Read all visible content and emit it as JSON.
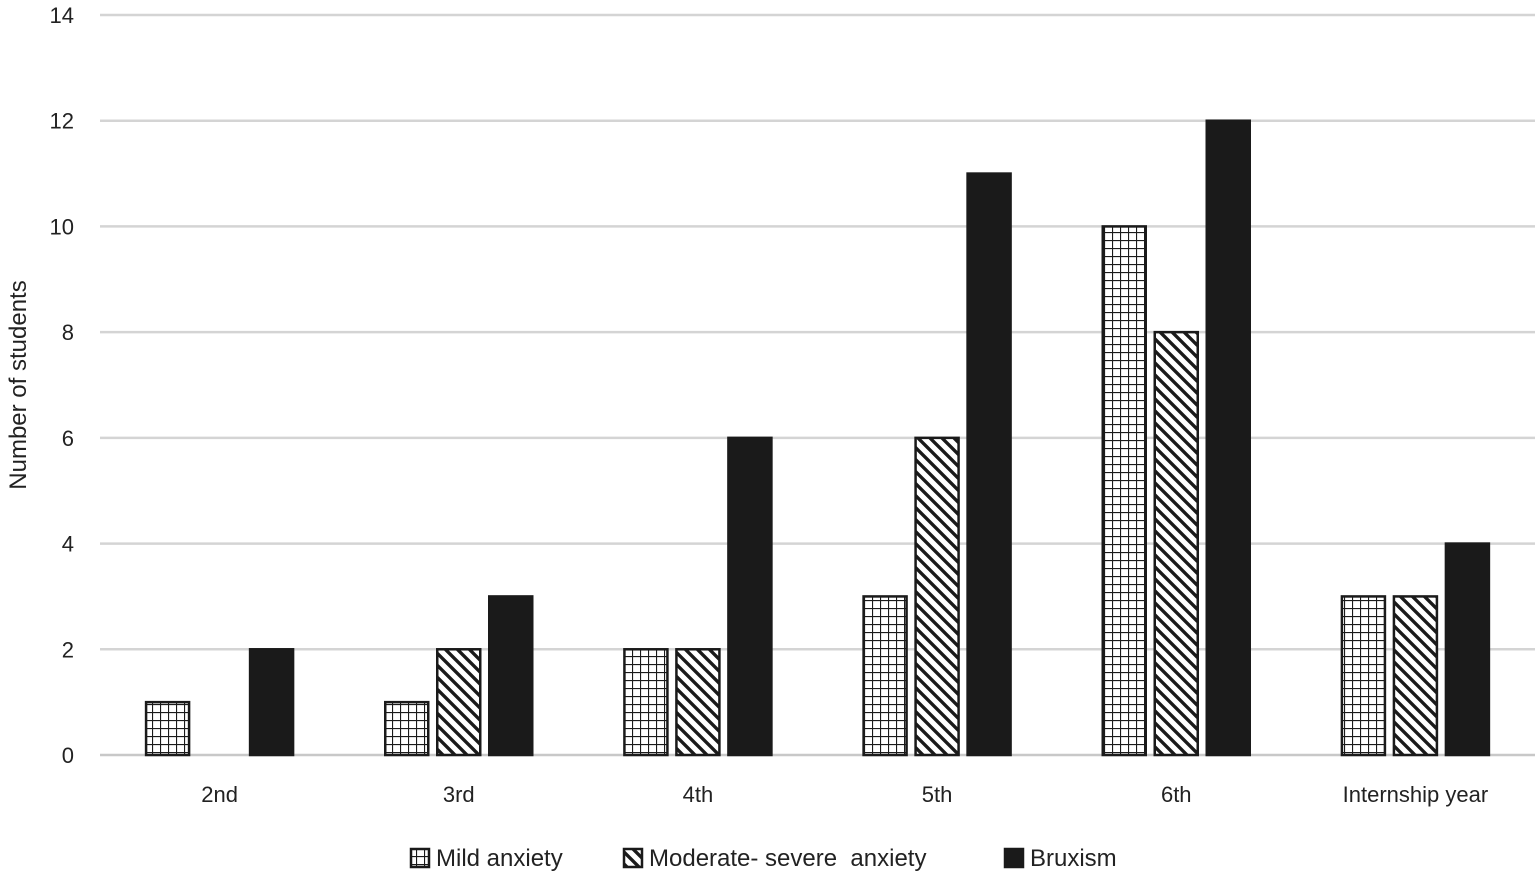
{
  "chart_data": {
    "type": "bar",
    "title": "",
    "xlabel": "",
    "ylabel": "Number of students",
    "ylim": [
      0,
      14
    ],
    "yticks": [
      0,
      2,
      4,
      6,
      8,
      10,
      12,
      14
    ],
    "grid": true,
    "legend_position": "bottom",
    "categories": [
      "2nd",
      "3rd",
      "4th",
      "5th",
      "6th",
      "Internship year"
    ],
    "series": [
      {
        "name": "Mild anxiety",
        "pattern": "grid",
        "color": "#1a1a1a",
        "values": [
          1,
          1,
          2,
          3,
          10,
          3
        ]
      },
      {
        "name": "Moderate- severe  anxiety",
        "pattern": "diagonal",
        "color": "#1a1a1a",
        "values": [
          0,
          2,
          2,
          6,
          8,
          3
        ]
      },
      {
        "name": "Bruxism",
        "pattern": "solid",
        "color": "#1a1a1a",
        "values": [
          2,
          3,
          6,
          11,
          12,
          4
        ]
      }
    ]
  }
}
